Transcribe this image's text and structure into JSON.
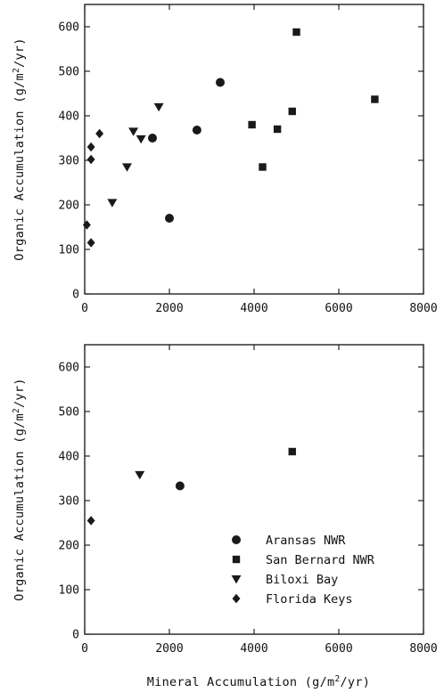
{
  "chart_data": [
    {
      "type": "scatter",
      "xlabel": "",
      "ylabel": "Organic Accumulation (g/m²/yr)",
      "ylabel_parts": {
        "pre": "Organic Accumulation (g/m",
        "sup": "2",
        "post": "/yr)"
      },
      "xlim": [
        0,
        8000
      ],
      "ylim": [
        0,
        650
      ],
      "xticks": [
        0,
        2000,
        4000,
        6000,
        8000
      ],
      "yticks": [
        0,
        100,
        200,
        300,
        400,
        500,
        600
      ],
      "legend": "none",
      "series": [
        {
          "marker": "circle",
          "points": [
            [
              1600,
              350
            ],
            [
              2000,
              170
            ],
            [
              2650,
              368
            ],
            [
              3200,
              475
            ]
          ]
        },
        {
          "marker": "square",
          "points": [
            [
              3950,
              380
            ],
            [
              4200,
              285
            ],
            [
              4550,
              370
            ],
            [
              4900,
              410
            ],
            [
              5000,
              588
            ],
            [
              6850,
              437
            ]
          ]
        },
        {
          "marker": "triangle-down",
          "points": [
            [
              650,
              205
            ],
            [
              1000,
              285
            ],
            [
              1150,
              365
            ],
            [
              1330,
              348
            ],
            [
              1750,
              420
            ]
          ]
        },
        {
          "marker": "diamond",
          "points": [
            [
              50,
              155
            ],
            [
              150,
              330
            ],
            [
              150,
              302
            ],
            [
              150,
              115
            ],
            [
              350,
              360
            ]
          ]
        }
      ]
    },
    {
      "type": "scatter",
      "xlabel": "Mineral Accumulation (g/m²/yr)",
      "xlabel_parts": {
        "pre": "Mineral Accumulation (g/m",
        "sup": "2",
        "post": "/yr)"
      },
      "ylabel": "Organic Accumulation (g/m²/yr)",
      "ylabel_parts": {
        "pre": "Organic Accumulation (g/m",
        "sup": "2",
        "post": "/yr)"
      },
      "xlim": [
        0,
        8000
      ],
      "ylim": [
        0,
        650
      ],
      "xticks": [
        0,
        2000,
        4000,
        6000,
        8000
      ],
      "yticks": [
        0,
        100,
        200,
        300,
        400,
        500,
        600
      ],
      "legend": "bottom-right",
      "series": [
        {
          "name": "Aransas NWR",
          "marker": "circle",
          "points": [
            [
              2250,
              333
            ]
          ]
        },
        {
          "name": "San Bernard NWR",
          "marker": "square",
          "points": [
            [
              4900,
              410
            ]
          ]
        },
        {
          "name": "Biloxi Bay",
          "marker": "triangle-down",
          "points": [
            [
              1300,
              358
            ]
          ]
        },
        {
          "name": "Florida Keys",
          "marker": "diamond",
          "points": [
            [
              150,
              255
            ]
          ]
        }
      ]
    }
  ],
  "colors": {
    "ink": "#1a1a1a",
    "background": "#ffffff"
  }
}
